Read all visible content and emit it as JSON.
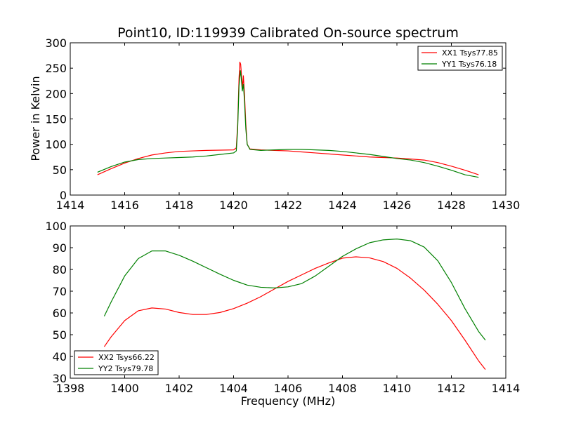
{
  "chart_data": [
    {
      "type": "line",
      "title": "Point10, ID:119939 Calibrated On-source spectrum",
      "xlabel": "",
      "ylabel": "Power in Kelvin",
      "xlim": [
        1414,
        1430
      ],
      "ylim": [
        0,
        300
      ],
      "xticks": [
        1414,
        1416,
        1418,
        1420,
        1422,
        1424,
        1426,
        1428,
        1430
      ],
      "yticks": [
        0,
        50,
        100,
        150,
        200,
        250,
        300
      ],
      "legend_position": "top-right",
      "grid": false,
      "series": [
        {
          "name": "XX1 Tsys77.85",
          "color": "#ff0000",
          "x": [
            1415.0,
            1415.5,
            1416.0,
            1416.5,
            1417.0,
            1417.5,
            1418.0,
            1418.5,
            1419.0,
            1419.5,
            1420.0,
            1420.1,
            1420.15,
            1420.2,
            1420.23,
            1420.26,
            1420.3,
            1420.33,
            1420.36,
            1420.4,
            1420.45,
            1420.5,
            1420.6,
            1421.0,
            1421.5,
            1422.0,
            1422.5,
            1423.0,
            1423.5,
            1424.0,
            1424.5,
            1425.0,
            1425.5,
            1426.0,
            1426.5,
            1427.0,
            1427.5,
            1428.0,
            1428.5,
            1429.0
          ],
          "y": [
            40,
            52,
            63,
            72,
            79,
            83,
            86,
            87,
            88,
            88.5,
            89,
            93,
            140,
            230,
            262,
            258,
            230,
            212,
            235,
            200,
            140,
            100,
            91,
            89,
            88,
            87,
            85,
            83,
            81,
            79,
            77,
            75,
            74,
            73,
            71,
            69,
            64,
            57,
            49,
            40
          ]
        },
        {
          "name": "YY1 Tsys76.18",
          "color": "#008000",
          "x": [
            1415.0,
            1415.5,
            1416.0,
            1416.5,
            1417.0,
            1417.5,
            1418.0,
            1418.5,
            1419.0,
            1419.5,
            1420.0,
            1420.1,
            1420.15,
            1420.2,
            1420.25,
            1420.28,
            1420.32,
            1420.36,
            1420.4,
            1420.45,
            1420.5,
            1420.6,
            1421.0,
            1421.5,
            1422.0,
            1422.5,
            1423.0,
            1423.5,
            1424.0,
            1424.5,
            1425.0,
            1425.5,
            1426.0,
            1426.5,
            1427.0,
            1427.5,
            1428.0,
            1428.5,
            1429.0
          ],
          "y": [
            45,
            56,
            65,
            70,
            72,
            73,
            74,
            75,
            77,
            80,
            83,
            87,
            130,
            215,
            245,
            232,
            205,
            218,
            185,
            130,
            100,
            90,
            88,
            89,
            90,
            90,
            89,
            88,
            86,
            83,
            80,
            76,
            72,
            69,
            64,
            57,
            49,
            40,
            35
          ]
        }
      ]
    },
    {
      "type": "line",
      "title": "",
      "xlabel": "Frequency (MHz)",
      "ylabel": "",
      "xlim": [
        1398,
        1414
      ],
      "ylim": [
        30,
        100
      ],
      "xticks": [
        1398,
        1400,
        1402,
        1404,
        1406,
        1408,
        1410,
        1412,
        1414
      ],
      "yticks": [
        30,
        40,
        50,
        60,
        70,
        80,
        90,
        100
      ],
      "legend_position": "bottom-left",
      "grid": false,
      "series": [
        {
          "name": "XX2 Tsys66.22",
          "color": "#ff0000",
          "x": [
            1399.25,
            1399.5,
            1400.0,
            1400.5,
            1401.0,
            1401.5,
            1402.0,
            1402.5,
            1403.0,
            1403.5,
            1404.0,
            1404.5,
            1405.0,
            1405.5,
            1406.0,
            1406.5,
            1407.0,
            1407.5,
            1408.0,
            1408.5,
            1409.0,
            1409.5,
            1410.0,
            1410.5,
            1411.0,
            1411.5,
            1412.0,
            1412.5,
            1413.0,
            1413.25
          ],
          "y": [
            44.5,
            49,
            56.5,
            61,
            62.3,
            61.8,
            60.2,
            59.3,
            59.3,
            60.2,
            62,
            64.5,
            67.5,
            71,
            74.5,
            77.5,
            80.5,
            83,
            85.2,
            85.8,
            85.3,
            83.6,
            80.5,
            76,
            70.5,
            64,
            56.5,
            47.5,
            38,
            34
          ]
        },
        {
          "name": "YY2 Tsys79.78",
          "color": "#008000",
          "x": [
            1399.25,
            1399.5,
            1400.0,
            1400.5,
            1401.0,
            1401.5,
            1402.0,
            1402.5,
            1403.0,
            1403.5,
            1404.0,
            1404.5,
            1405.0,
            1405.5,
            1406.0,
            1406.5,
            1407.0,
            1407.5,
            1408.0,
            1408.5,
            1409.0,
            1409.5,
            1410.0,
            1410.5,
            1411.0,
            1411.5,
            1412.0,
            1412.5,
            1413.0,
            1413.25
          ],
          "y": [
            58.5,
            65,
            77,
            85,
            88.5,
            88.5,
            86.5,
            83.8,
            80.8,
            77.8,
            75,
            72.8,
            71.8,
            71.5,
            72,
            73.5,
            77,
            81.5,
            86,
            89.5,
            92.3,
            93.6,
            94,
            93.2,
            90.3,
            84,
            74,
            62,
            51.5,
            47.5
          ]
        }
      ]
    }
  ]
}
